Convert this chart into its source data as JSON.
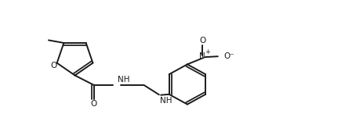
{
  "background_color": "#ffffff",
  "line_color": "#1a1a1a",
  "line_width": 1.4,
  "figsize": [
    4.64,
    1.78
  ],
  "dpi": 100,
  "xlim": [
    0,
    10
  ],
  "ylim": [
    0,
    4
  ]
}
